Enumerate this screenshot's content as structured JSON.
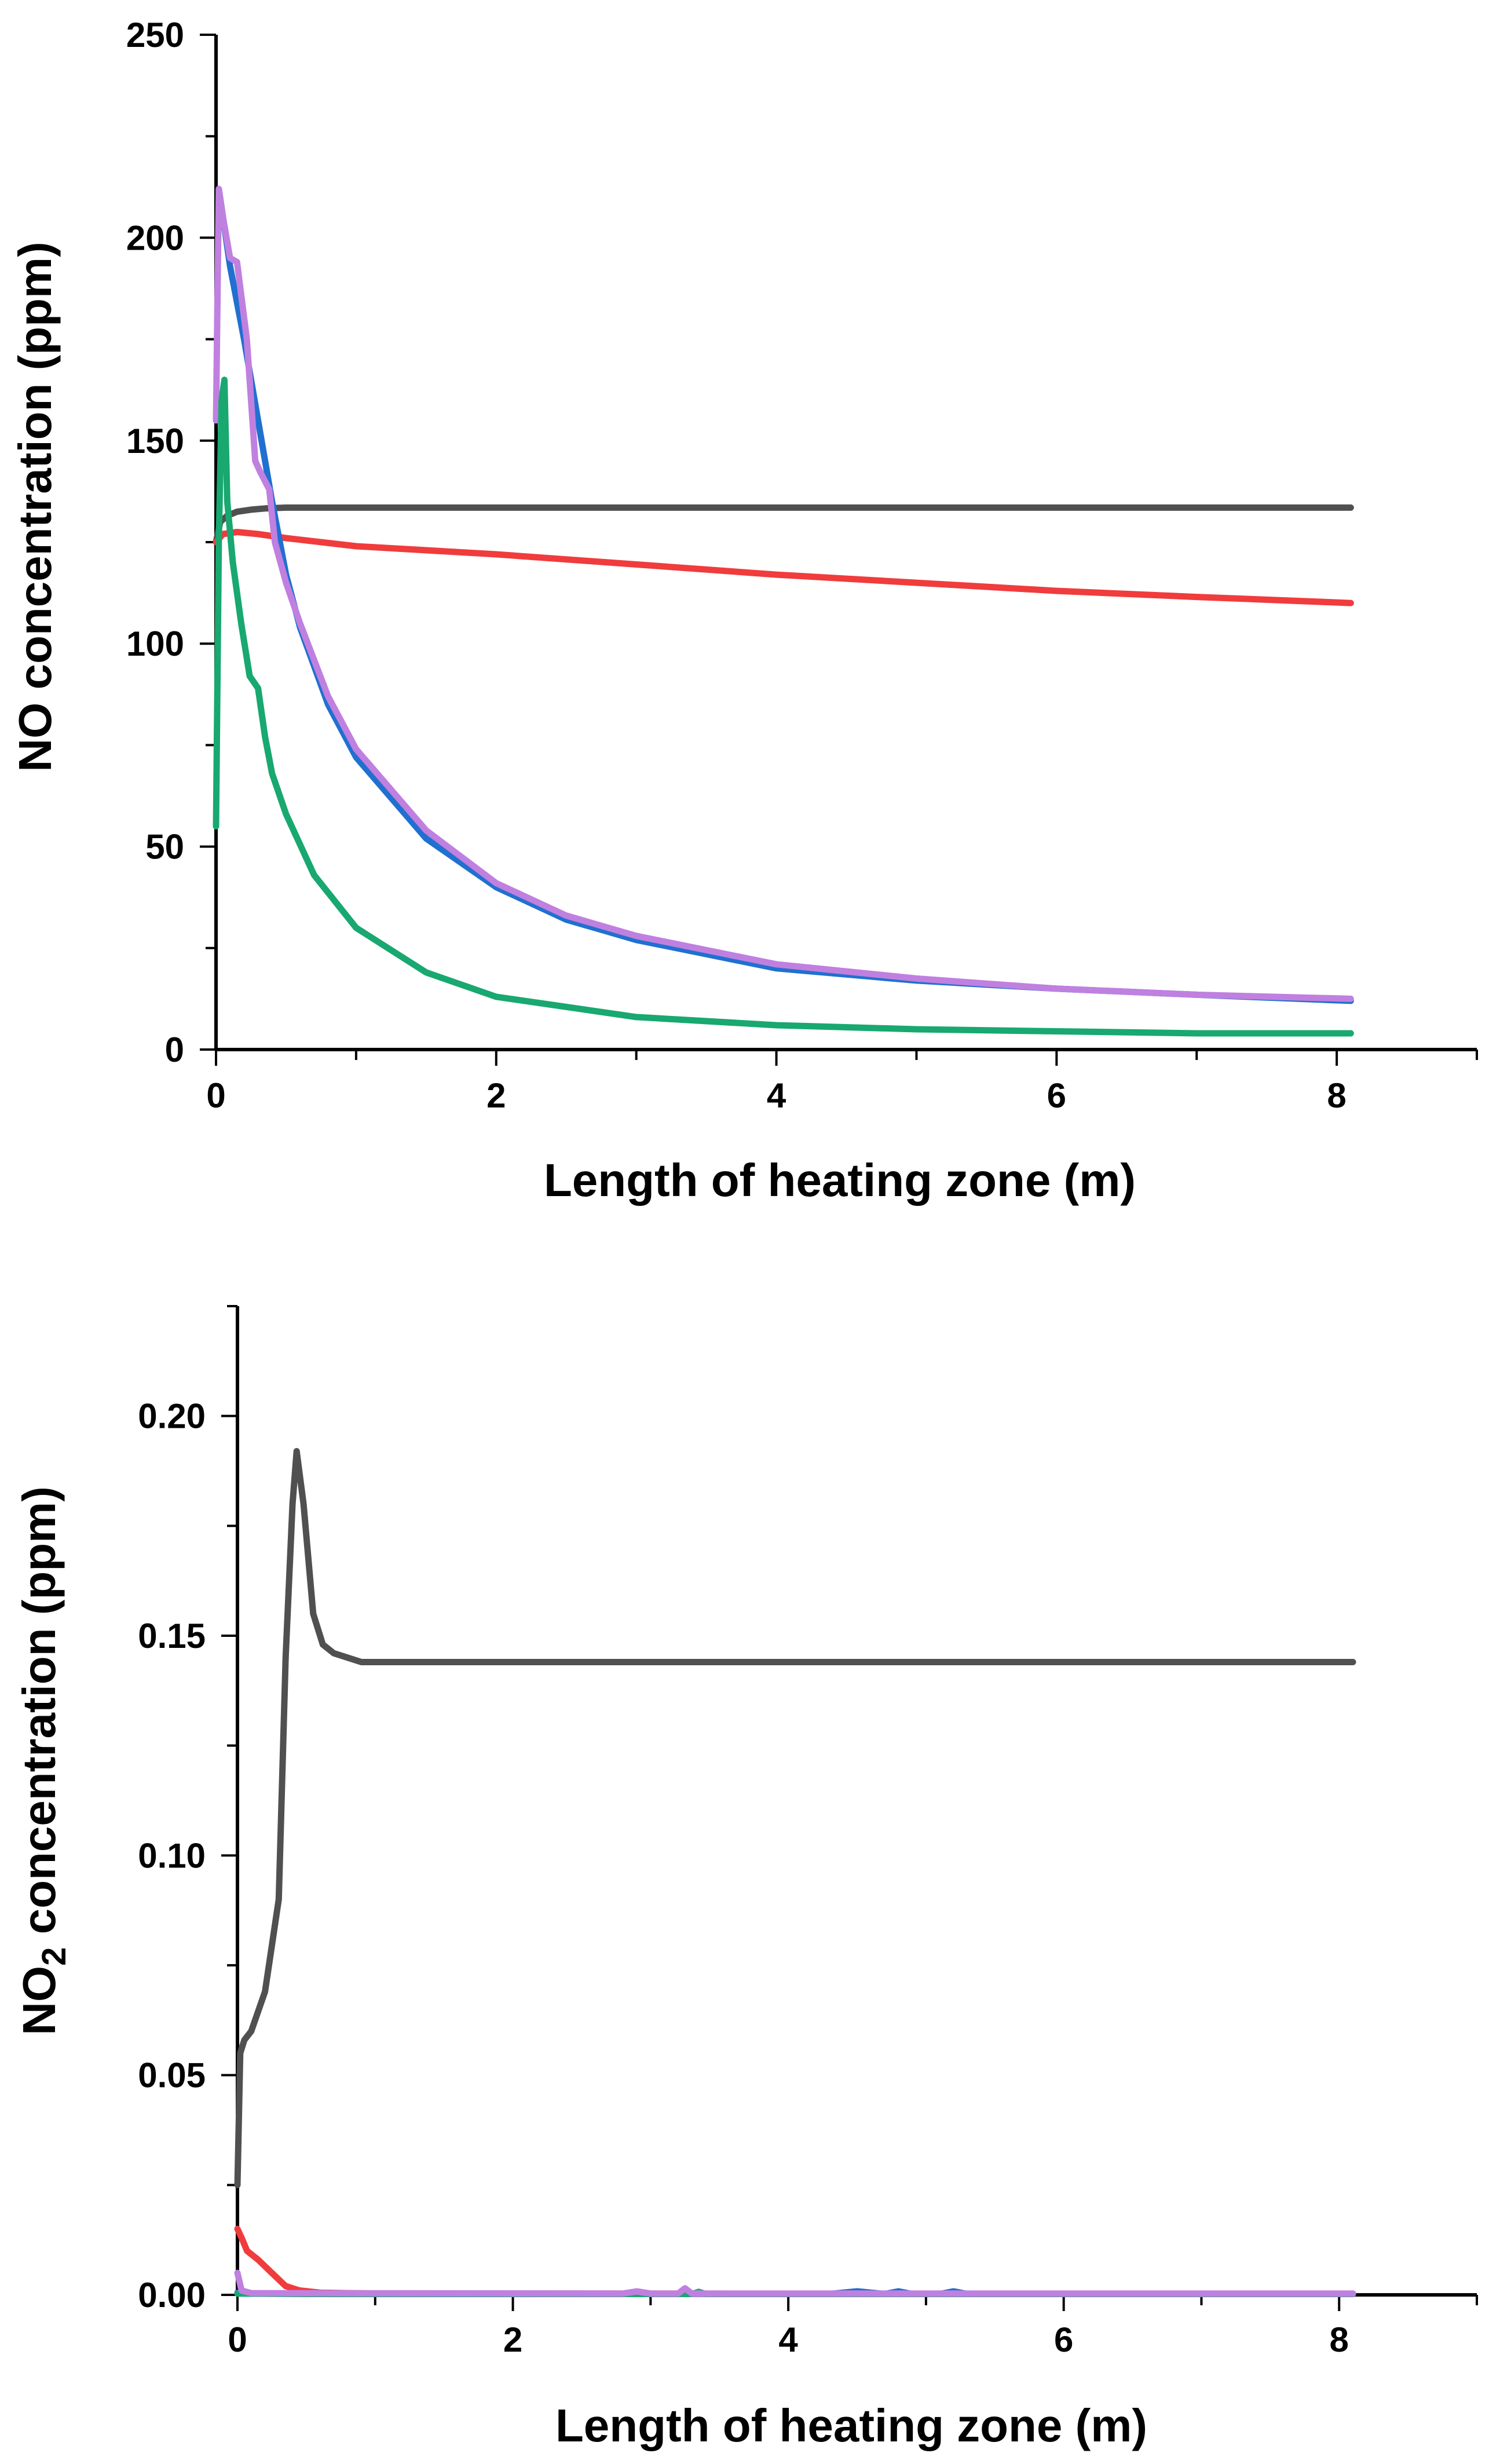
{
  "chart_data": [
    {
      "type": "line",
      "title": "",
      "xlabel": "Length of heating zone (m)",
      "ylabel": "NO concentration (ppm)",
      "xlim": [
        0,
        9
      ],
      "ylim": [
        0,
        250
      ],
      "xticks": [
        "0",
        "2",
        "4",
        "6",
        "8"
      ],
      "yticks": [
        "0",
        "50",
        "100",
        "150",
        "200",
        "250"
      ],
      "grid": false,
      "series": [
        {
          "name": "black",
          "color": "#505050",
          "x": [
            0,
            0.03,
            0.08,
            0.15,
            0.25,
            0.35,
            0.5,
            1,
            2,
            4,
            6,
            8.1
          ],
          "y": [
            125,
            130,
            131.5,
            132.5,
            133,
            133.3,
            133.5,
            133.5,
            133.5,
            133.5,
            133.5,
            133.5
          ]
        },
        {
          "name": "red",
          "color": "#f03c3c",
          "x": [
            0,
            0.05,
            0.15,
            0.3,
            0.5,
            1,
            2,
            3,
            4,
            5,
            6,
            7,
            8.1
          ],
          "y": [
            125,
            127,
            127.5,
            127,
            126,
            124,
            122,
            119.5,
            117,
            115,
            113,
            111.5,
            110
          ]
        },
        {
          "name": "blue",
          "color": "#2070d0",
          "x": [
            0.02,
            0.05,
            0.1,
            0.2,
            0.3,
            0.4,
            0.5,
            0.6,
            0.8,
            1,
            1.5,
            2,
            2.5,
            3,
            4,
            5,
            6,
            7,
            8.1
          ],
          "y": [
            212,
            205,
            193,
            175,
            155,
            135,
            117,
            104,
            85,
            72,
            52,
            40,
            32,
            27,
            20,
            17,
            15,
            13.5,
            12
          ]
        },
        {
          "name": "purple",
          "color": "#c080e0",
          "x": [
            0,
            0.02,
            0.05,
            0.1,
            0.15,
            0.22,
            0.28,
            0.32,
            0.38,
            0.42,
            0.5,
            0.6,
            0.8,
            1,
            1.5,
            2,
            2.5,
            3,
            4,
            5,
            6,
            7,
            8.1
          ],
          "y": [
            155,
            212,
            205,
            195,
            194,
            175,
            145,
            142,
            138,
            125,
            115,
            105,
            87,
            74,
            54,
            41,
            33,
            28,
            21,
            17.5,
            15,
            13.5,
            12.5
          ]
        },
        {
          "name": "green",
          "color": "#18a870",
          "x": [
            0,
            0.02,
            0.04,
            0.06,
            0.08,
            0.12,
            0.18,
            0.24,
            0.3,
            0.35,
            0.4,
            0.5,
            0.7,
            1,
            1.5,
            2,
            3,
            4,
            5,
            6,
            7,
            8.1
          ],
          "y": [
            55,
            125,
            160,
            165,
            135,
            120,
            105,
            92,
            89,
            77,
            68,
            58,
            43,
            30,
            19,
            13,
            8,
            6,
            5,
            4.5,
            4,
            4
          ]
        }
      ]
    },
    {
      "type": "line",
      "title": "",
      "xlabel": "Length of heating zone (m)",
      "ylabel": {
        "main": "NO",
        "sub": "2",
        "rest": " concentration  (ppm)"
      },
      "xlim": [
        0,
        9
      ],
      "ylim": [
        0,
        0.225
      ],
      "xticks": [
        "0",
        "2",
        "4",
        "6",
        "8"
      ],
      "yticks": [
        "0.00",
        "0.05",
        "0.10",
        "0.15",
        "0.20"
      ],
      "grid": false,
      "series": [
        {
          "name": "black",
          "color": "#505050",
          "x": [
            0,
            0.02,
            0.05,
            0.1,
            0.2,
            0.3,
            0.35,
            0.4,
            0.43,
            0.48,
            0.55,
            0.62,
            0.7,
            0.8,
            0.9,
            1,
            2,
            4,
            6,
            8.1
          ],
          "y": [
            0.025,
            0.055,
            0.058,
            0.06,
            0.069,
            0.09,
            0.145,
            0.18,
            0.192,
            0.18,
            0.155,
            0.148,
            0.146,
            0.145,
            0.144,
            0.144,
            0.144,
            0.144,
            0.144,
            0.144
          ]
        },
        {
          "name": "red",
          "color": "#f03c3c",
          "x": [
            0,
            0.03,
            0.07,
            0.15,
            0.25,
            0.35,
            0.45,
            0.6,
            1,
            8.1
          ],
          "y": [
            0.015,
            0.013,
            0.01,
            0.008,
            0.005,
            0.002,
            0.001,
            0.0005,
            0.0003,
            0.0002
          ]
        },
        {
          "name": "blue",
          "color": "#2070d0",
          "x": [
            0,
            0.1,
            4.3,
            4.5,
            4.7,
            4.8,
            4.9,
            5.1,
            5.2,
            5.3,
            8.1
          ],
          "y": [
            0.0005,
            0.0003,
            0.0002,
            0.0008,
            0.0002,
            0.0008,
            0.0002,
            0.0002,
            0.0008,
            0.0002,
            0.0002
          ]
        },
        {
          "name": "green",
          "color": "#18a870",
          "x": [
            0,
            0.5,
            3.3,
            3.35,
            3.4,
            8.1
          ],
          "y": [
            0.0003,
            0.0002,
            0.0002,
            0.0007,
            0.0002,
            0.0002
          ]
        },
        {
          "name": "purple",
          "color": "#c080e0",
          "x": [
            0,
            0.03,
            0.1,
            2.8,
            2.9,
            3.0,
            3.2,
            3.25,
            3.3,
            8.1
          ],
          "y": [
            0.005,
            0.001,
            0.0004,
            0.0003,
            0.0008,
            0.0003,
            0.0003,
            0.0015,
            0.0003,
            0.0003
          ]
        }
      ]
    }
  ]
}
